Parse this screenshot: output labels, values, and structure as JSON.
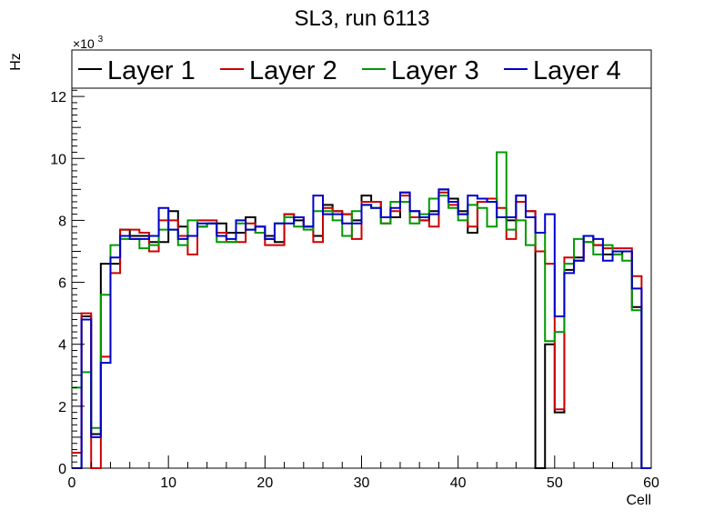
{
  "chart_data": {
    "type": "line",
    "subtype": "step-histogram",
    "title": "SL3, run 6113",
    "xlabel": "Cell",
    "ylabel": "Hz",
    "y_multiplier_label": "×10",
    "y_multiplier_exponent": "3",
    "xlim": [
      0,
      60
    ],
    "ylim": [
      0,
      13.5
    ],
    "x_ticks": [
      0,
      10,
      20,
      30,
      40,
      50,
      60
    ],
    "y_ticks": [
      0,
      2,
      4,
      6,
      8,
      10,
      12
    ],
    "x_tick_labels": [
      "0",
      "10",
      "20",
      "30",
      "40",
      "50",
      "60"
    ],
    "y_tick_labels": [
      "0",
      "2",
      "4",
      "6",
      "8",
      "10",
      "12"
    ],
    "bin_width": 1,
    "legend_position": "top",
    "grid": false,
    "series": [
      {
        "name": "Layer 1",
        "color": "#000000",
        "values": [
          0,
          4.9,
          1.1,
          6.6,
          6.6,
          7.7,
          7.5,
          7.5,
          7.3,
          7.3,
          8.3,
          7.8,
          7.5,
          7.8,
          7.9,
          7.9,
          7.6,
          7.6,
          8.1,
          7.8,
          7.5,
          7.3,
          8.2,
          8.0,
          7.8,
          7.5,
          8.5,
          8.3,
          8.2,
          8.0,
          8.8,
          8.6,
          8.1,
          8.1,
          8.9,
          8.3,
          8.0,
          8.3,
          9.0,
          8.7,
          8.3,
          7.6,
          8.6,
          8.7,
          8.1,
          8.0,
          8.8,
          8.3,
          0,
          4.0,
          1.8,
          6.4,
          6.8,
          7.5,
          7.2,
          6.9,
          6.9,
          7.0,
          5.2,
          0
        ]
      },
      {
        "name": "Layer 2",
        "color": "#cc0000",
        "values": [
          0.5,
          5.0,
          0,
          3.6,
          6.3,
          7.7,
          7.7,
          7.6,
          7.0,
          8.0,
          8.0,
          7.5,
          6.9,
          8.0,
          8.0,
          7.6,
          7.3,
          7.3,
          7.9,
          7.6,
          7.2,
          7.2,
          8.2,
          8.1,
          7.8,
          7.3,
          8.4,
          8.3,
          8.2,
          7.4,
          8.6,
          8.6,
          7.9,
          8.3,
          8.8,
          8.1,
          8.0,
          7.8,
          8.9,
          8.5,
          8.2,
          7.8,
          8.6,
          8.7,
          8.4,
          7.4,
          8.6,
          8.3,
          7.0,
          6.6,
          1.9,
          6.8,
          6.7,
          7.3,
          7.2,
          7.1,
          7.1,
          7.1,
          6.2,
          0
        ]
      },
      {
        "name": "Layer 3",
        "color": "#009900",
        "values": [
          2.6,
          3.1,
          1.3,
          5.6,
          7.2,
          7.4,
          7.4,
          7.1,
          7.2,
          7.7,
          7.7,
          7.2,
          8.0,
          7.8,
          7.9,
          7.3,
          7.3,
          7.9,
          7.7,
          7.6,
          7.4,
          7.9,
          8.1,
          7.8,
          7.7,
          8.3,
          8.3,
          8.0,
          7.5,
          8.3,
          8.5,
          8.4,
          7.9,
          8.6,
          8.6,
          7.9,
          8.2,
          8.7,
          8.8,
          8.4,
          8.0,
          8.5,
          8.4,
          7.8,
          10.2,
          7.7,
          8.0,
          7.2,
          7.6,
          4.1,
          4.4,
          6.6,
          7.4,
          7.3,
          6.9,
          7.2,
          6.9,
          6.7,
          5.1,
          0
        ]
      },
      {
        "name": "Layer 4",
        "color": "#0000cc",
        "values": [
          0,
          4.8,
          1.0,
          3.4,
          6.8,
          7.5,
          7.4,
          7.4,
          7.5,
          8.4,
          7.7,
          7.4,
          7.5,
          7.9,
          7.9,
          7.5,
          7.4,
          8.0,
          7.7,
          7.8,
          7.4,
          7.9,
          7.9,
          8.1,
          7.8,
          8.8,
          8.2,
          8.2,
          7.9,
          7.9,
          8.5,
          8.4,
          8.1,
          8.4,
          8.9,
          8.3,
          8.1,
          8.2,
          9.0,
          8.6,
          8.2,
          8.8,
          8.7,
          8.6,
          8.1,
          8.1,
          8.8,
          8.1,
          7.6,
          8.2,
          4.9,
          6.3,
          6.7,
          7.5,
          7.4,
          6.7,
          7.0,
          7.0,
          5.8,
          0
        ]
      }
    ]
  }
}
